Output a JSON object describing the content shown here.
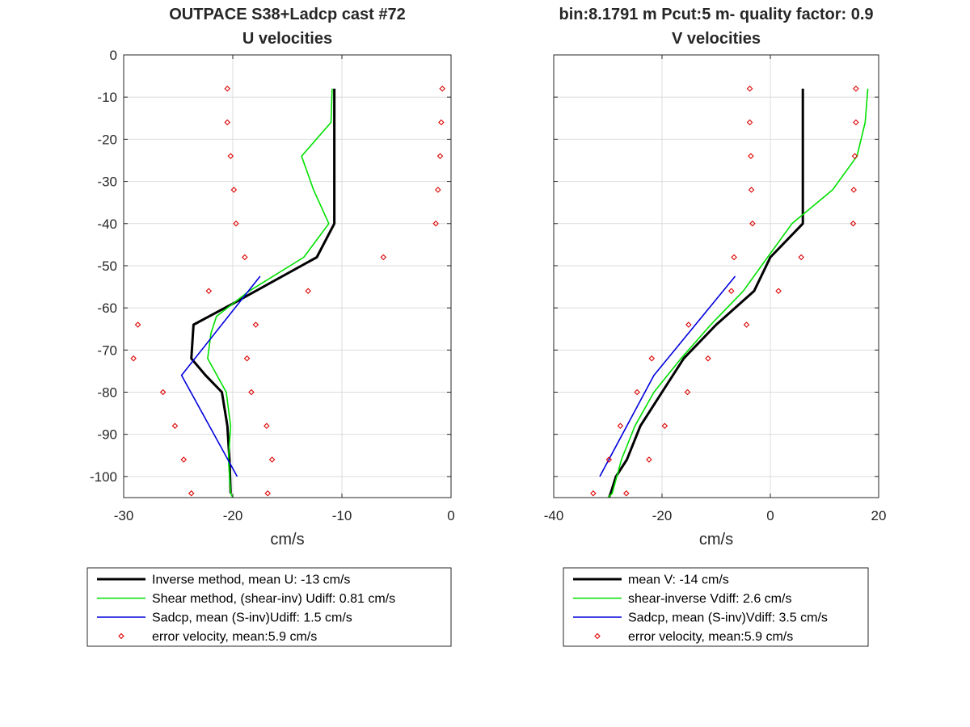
{
  "chart_data": [
    {
      "type": "line",
      "title": [
        "OUTPACE S38+Ladcp cast #72",
        "U velocities"
      ],
      "xlabel": "cm/s",
      "ylabel": "",
      "xlim": [
        -30,
        0
      ],
      "ylim": [
        -105,
        0
      ],
      "xticks": [
        -30,
        -20,
        -10,
        0
      ],
      "yticks": [
        0,
        -10,
        -20,
        -30,
        -40,
        -50,
        -60,
        -70,
        -80,
        -90,
        -100
      ],
      "grid": true,
      "legend_position": "below",
      "series": [
        {
          "name": "Inverse method, mean U:  -13 cm/s",
          "color": "#000000",
          "style": "line",
          "x": [
            -10.7,
            -10.7,
            -10.7,
            -10.7,
            -10.7,
            -12.3,
            -20.0,
            -23.6,
            -23.8,
            -22.5,
            -21.0,
            -20.5,
            -20.3,
            -20.2
          ],
          "y": [
            -8,
            -16,
            -24,
            -32,
            -40,
            -48,
            -59,
            -64,
            -72,
            -76,
            -80,
            -88,
            -96,
            -104
          ]
        },
        {
          "name": "Shear method, (shear-inv)  Udiff:  0.81 cm/s",
          "color": "#00e000",
          "style": "line",
          "x": [
            -10.9,
            -11.0,
            -13.7,
            -12.6,
            -11.2,
            -13.5,
            -18.5,
            -21.5,
            -22.0,
            -22.3,
            -20.6,
            -20.2,
            -20.4,
            -20.2,
            -20.0
          ],
          "y": [
            -8,
            -16,
            -24,
            -32,
            -40,
            -48,
            -56,
            -62,
            -66,
            -72,
            -80,
            -88,
            -96,
            -104,
            -105
          ]
        },
        {
          "name": "Sadcp, mean (S-inv)Udiff: 1.5 cm/s",
          "color": "#0000dd",
          "style": "line",
          "x": [
            -17.5,
            -24.7,
            -19.6
          ],
          "y": [
            -52.5,
            -76,
            -100
          ]
        },
        {
          "name": "error velocity, mean:5.9 cm/s",
          "color": "#dd0000",
          "style": "markers",
          "x": [
            -20.5,
            -20.5,
            -20.2,
            -19.9,
            -19.7,
            -18.9,
            -22.2,
            -28.7,
            -29.1,
            -26.4,
            -25.3,
            -24.5,
            -23.8,
            -0.8,
            -0.9,
            -1.0,
            -1.2,
            -1.4,
            -6.2,
            -13.1,
            -17.9,
            -18.7,
            -18.3,
            -16.9,
            -16.4,
            -16.8
          ],
          "y": [
            -8,
            -16,
            -24,
            -32,
            -40,
            -48,
            -56,
            -64,
            -72,
            -80,
            -88,
            -96,
            -104,
            -8,
            -16,
            -24,
            -32,
            -40,
            -48,
            -56,
            -64,
            -72,
            -80,
            -88,
            -96,
            -104
          ]
        }
      ]
    },
    {
      "type": "line",
      "title": [
        "bin:8.1791 m  Pcut:5 m- quality factor:  0.9",
        "V velocities"
      ],
      "xlabel": "cm/s",
      "ylabel": "",
      "xlim": [
        -40,
        20
      ],
      "ylim": [
        -105,
        0
      ],
      "xticks": [
        -40,
        -20,
        0,
        20
      ],
      "yticks": [
        0,
        -10,
        -20,
        -30,
        -40,
        -50,
        -60,
        -70,
        -80,
        -90,
        -100
      ],
      "grid": true,
      "legend_position": "below",
      "series": [
        {
          "name": "mean V:  -14 cm/s",
          "color": "#000000",
          "style": "line",
          "x": [
            6.0,
            6.0,
            6.0,
            6.0,
            6.0,
            0.0,
            -3.0,
            -10.0,
            -16.0,
            -20.0,
            -24.0,
            -26.5,
            -28.5,
            -29.5,
            -29.8
          ],
          "y": [
            -8,
            -16,
            -24,
            -32,
            -40,
            -48,
            -56,
            -64,
            -72,
            -80,
            -88,
            -96,
            -100,
            -104,
            -105
          ]
        },
        {
          "name": "shear-inverse Vdiff:  2.6 cm/s",
          "color": "#00e000",
          "style": "line",
          "x": [
            18.0,
            17.5,
            16.0,
            11.5,
            4.0,
            -0.5,
            -5.0,
            -11.0,
            -16.5,
            -21.5,
            -25.0,
            -27.5,
            -29.2,
            -30.0
          ],
          "y": [
            -8,
            -16,
            -24,
            -32,
            -40,
            -48,
            -56,
            -64,
            -72,
            -80,
            -88,
            -96,
            -104,
            -105
          ]
        },
        {
          "name": "Sadcp, mean (S-inv)Vdiff: 3.5 cm/s",
          "color": "#0000dd",
          "style": "line",
          "x": [
            -6.5,
            -21.5,
            -31.5
          ],
          "y": [
            -52.5,
            -76,
            -100
          ]
        },
        {
          "name": "error velocity, mean:5.9 cm/s",
          "color": "#dd0000",
          "style": "markers",
          "x": [
            -3.8,
            -3.8,
            -3.6,
            -3.5,
            -3.3,
            -6.7,
            -7.2,
            -15.1,
            -21.9,
            -24.6,
            -27.7,
            -29.8,
            -32.7,
            15.8,
            15.8,
            15.6,
            15.4,
            15.3,
            5.7,
            1.5,
            -4.4,
            -11.5,
            -15.3,
            -19.5,
            -22.4,
            -26.6
          ],
          "y": [
            -8,
            -16,
            -24,
            -32,
            -40,
            -48,
            -56,
            -64,
            -72,
            -80,
            -88,
            -96,
            -104,
            -8,
            -16,
            -24,
            -32,
            -40,
            -48,
            -56,
            -64,
            -72,
            -80,
            -88,
            -96,
            -104
          ]
        }
      ]
    }
  ]
}
